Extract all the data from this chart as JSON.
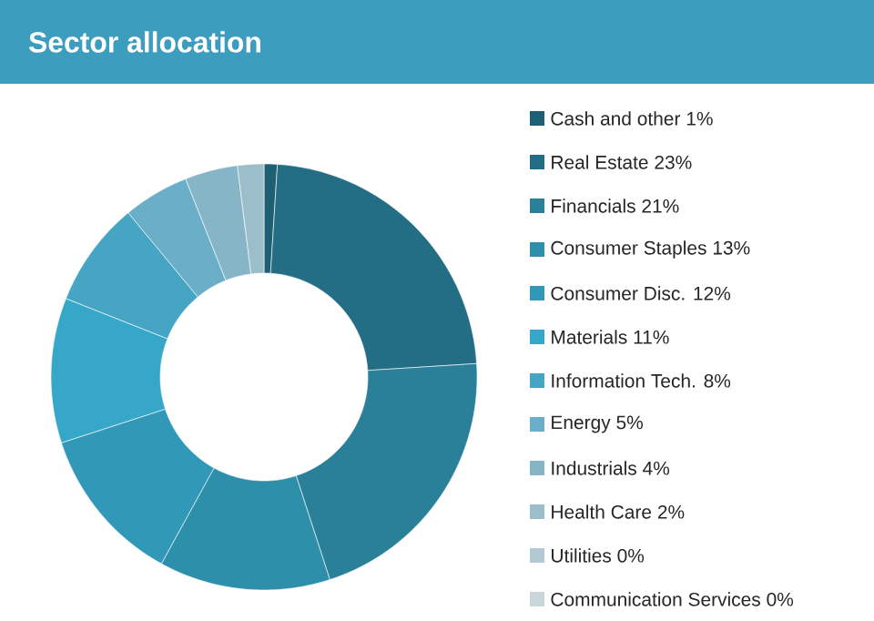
{
  "chart_data": {
    "type": "donut",
    "title": "Sector allocation",
    "legend": "right",
    "categories": [
      "Cash and other",
      "Real Estate",
      "Financials",
      "Consumer Staples",
      "Consumer Disc.",
      "Materials",
      "Information Tech.",
      "Energy",
      "Industrials",
      "Health Care",
      "Utilities",
      "Communication Services"
    ],
    "values": [
      1,
      23,
      21,
      13,
      12,
      11,
      8,
      5,
      4,
      2,
      0,
      0
    ],
    "value_labels": [
      "1%",
      "23%",
      "21%",
      "13%",
      "12%",
      "11%",
      "8%",
      "5%",
      "4%",
      "2%",
      "0%",
      "0%"
    ],
    "colors": [
      "#1e5f74",
      "#236e85",
      "#2a8099",
      "#2e8fab",
      "#3199b7",
      "#36a7c8",
      "#45a5c3",
      "#6aafc7",
      "#86b5c7",
      "#9cbecb",
      "#b2c9d2",
      "#c8d5da"
    ]
  }
}
